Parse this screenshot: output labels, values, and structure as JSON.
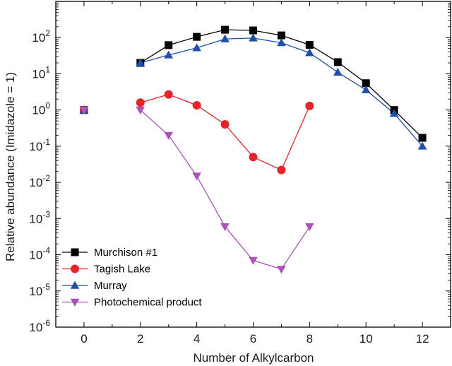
{
  "chart_data": {
    "type": "line",
    "title": "",
    "xlabel": "Number of Alkylcarbon",
    "ylabel": "Relative abundance (Imidazole = 1)",
    "xlim": [
      -1,
      13
    ],
    "ylim": [
      1e-06,
      1000
    ],
    "yscale": "log",
    "x_ticks": [
      0,
      2,
      4,
      6,
      8,
      10,
      12
    ],
    "y_ticks": [
      {
        "base": "10",
        "exp": "-6",
        "value": 1e-06
      },
      {
        "base": "10",
        "exp": "-5",
        "value": 1e-05
      },
      {
        "base": "10",
        "exp": "-4",
        "value": 0.0001
      },
      {
        "base": "10",
        "exp": "-3",
        "value": 0.001
      },
      {
        "base": "10",
        "exp": "-2",
        "value": 0.01
      },
      {
        "base": "10",
        "exp": "-1",
        "value": 0.1
      },
      {
        "base": "10",
        "exp": "0",
        "value": 1
      },
      {
        "base": "10",
        "exp": "1",
        "value": 10
      },
      {
        "base": "10",
        "exp": "2",
        "value": 100
      }
    ],
    "grid": false,
    "legend_position": "bottom-left",
    "series": [
      {
        "name": "Murchison #1",
        "color": "#000000",
        "marker": "square",
        "points": [
          [
            0,
            1
          ],
          [
            2,
            20
          ],
          [
            3,
            62
          ],
          [
            4,
            105
          ],
          [
            5,
            165
          ],
          [
            6,
            158
          ],
          [
            7,
            115
          ],
          [
            8,
            63
          ],
          [
            9,
            21
          ],
          [
            10,
            5.5
          ],
          [
            11,
            1.0
          ],
          [
            12,
            0.17
          ]
        ],
        "segments": [
          [
            2,
            12
          ]
        ]
      },
      {
        "name": "Tagish Lake",
        "color": "#e8232a",
        "marker": "circle",
        "points": [
          [
            0,
            1
          ],
          [
            2,
            1.6
          ],
          [
            3,
            2.7
          ],
          [
            4,
            1.35
          ],
          [
            5,
            0.4
          ],
          [
            6,
            0.05
          ],
          [
            7,
            0.022
          ],
          [
            8,
            1.3
          ]
        ],
        "segments": [
          [
            2,
            8
          ]
        ]
      },
      {
        "name": "Murray",
        "color": "#1f4fa8",
        "marker": "triangle-up",
        "points": [
          [
            0,
            1
          ],
          [
            2,
            20
          ],
          [
            3,
            33
          ],
          [
            4,
            52
          ],
          [
            5,
            92
          ],
          [
            6,
            97
          ],
          [
            7,
            72
          ],
          [
            8,
            38
          ],
          [
            9,
            11
          ],
          [
            10,
            3.6
          ],
          [
            11,
            0.8
          ],
          [
            12,
            0.1
          ]
        ],
        "segments": [
          [
            2,
            12
          ]
        ]
      },
      {
        "name": "Photochemical product",
        "color": "#a855b5",
        "marker": "triangle-down",
        "points": [
          [
            0,
            1
          ],
          [
            2,
            1.0
          ],
          [
            3,
            0.2
          ],
          [
            4,
            0.015
          ],
          [
            5,
            0.0006
          ],
          [
            6,
            7e-05
          ],
          [
            7,
            4e-05
          ],
          [
            8,
            0.0006
          ]
        ],
        "segments": [
          [
            2,
            8
          ]
        ]
      }
    ]
  }
}
